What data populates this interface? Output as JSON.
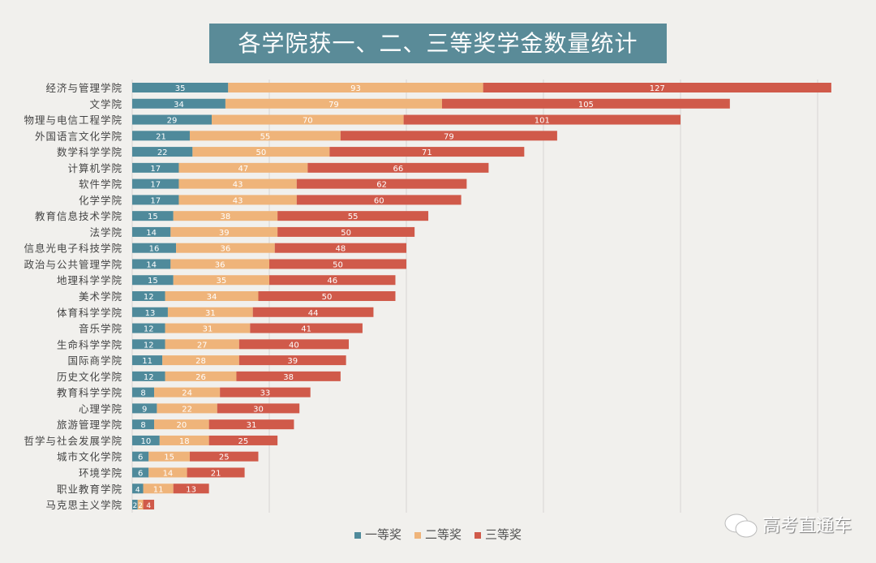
{
  "chart_data": {
    "type": "bar",
    "orientation": "horizontal",
    "stacked": true,
    "title": "各学院获一、二、三等奖学金数量统计",
    "categories": [
      "经济与管理学院",
      "文学院",
      "物理与电信工程学院",
      "外国语言文化学院",
      "数学科学学院",
      "计算机学院",
      "软件学院",
      "化学学院",
      "教育信息技术学院",
      "法学院",
      "信息光电子科技学院",
      "政治与公共管理学院",
      "地理科学学院",
      "美术学院",
      "体育科学学院",
      "音乐学院",
      "生命科学学院",
      "国际商学院",
      "历史文化学院",
      "教育科学学院",
      "心理学院",
      "旅游管理学院",
      "哲学与社会发展学院",
      "城市文化学院",
      "环境学院",
      "职业教育学院",
      "马克思主义学院"
    ],
    "series": [
      {
        "name": "一等奖",
        "color": "#4f8a9b",
        "values": [
          35,
          34,
          29,
          21,
          22,
          17,
          17,
          17,
          15,
          14,
          16,
          14,
          15,
          12,
          13,
          12,
          12,
          11,
          12,
          8,
          9,
          8,
          10,
          6,
          6,
          4,
          2
        ]
      },
      {
        "name": "二等奖",
        "color": "#efb47a",
        "values": [
          93,
          79,
          70,
          55,
          50,
          47,
          43,
          43,
          38,
          39,
          36,
          36,
          35,
          34,
          31,
          31,
          27,
          28,
          26,
          24,
          22,
          20,
          18,
          15,
          14,
          11,
          2
        ]
      },
      {
        "name": "三等奖",
        "color": "#d05a4a",
        "values": [
          127,
          105,
          101,
          79,
          71,
          66,
          62,
          60,
          55,
          50,
          48,
          50,
          46,
          50,
          44,
          41,
          40,
          39,
          38,
          33,
          30,
          31,
          25,
          25,
          21,
          13,
          4
        ]
      }
    ],
    "xlim": [
      0,
      260
    ],
    "grid": true,
    "legend": "bottom"
  },
  "watermark": "高考直通车"
}
